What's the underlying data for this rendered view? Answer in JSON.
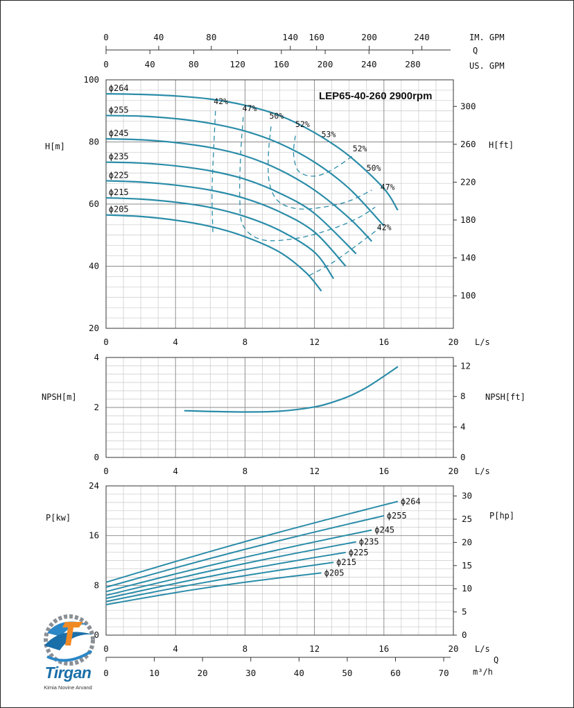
{
  "chart_data": [
    {
      "type": "line",
      "title": "LEP65-40-260 2900rpm",
      "ylabel": "H[m]",
      "ylabel_right": "H[ft]",
      "xlabel": "L/s",
      "xlim": [
        0,
        20
      ],
      "ylim": [
        20,
        100
      ],
      "xticks": [
        "0",
        "4",
        "8",
        "12",
        "16",
        "20"
      ],
      "yticks": [
        "20",
        "40",
        "60",
        "80",
        "100"
      ],
      "yticks_right": [
        "100",
        "140",
        "180",
        "220",
        "260",
        "300"
      ],
      "top_axes": [
        {
          "label": "IM. GPM",
          "ticks": [
            "0",
            "40",
            "80",
            "140",
            "160",
            "200",
            "240"
          ]
        },
        {
          "label": "Q",
          "ticks": []
        },
        {
          "label": "US. GPM",
          "ticks": [
            "0",
            "40",
            "80",
            "120",
            "160",
            "200",
            "240",
            "280"
          ]
        }
      ],
      "grid": true,
      "series": [
        {
          "name": "ϕ264",
          "x": [
            0,
            2,
            4,
            6,
            8,
            10,
            12,
            14,
            16,
            16.8
          ],
          "values": [
            95.5,
            95.3,
            94.8,
            93.8,
            91.8,
            88.5,
            83.0,
            75.5,
            65.0,
            58.0
          ]
        },
        {
          "name": "ϕ255",
          "x": [
            0,
            2,
            4,
            6,
            8,
            10,
            12,
            14,
            16
          ],
          "values": [
            88.5,
            88.3,
            87.5,
            86.0,
            83.5,
            79.5,
            73.5,
            65.0,
            53.0
          ]
        },
        {
          "name": "ϕ245",
          "x": [
            0,
            2,
            4,
            6,
            8,
            10,
            12,
            14,
            15.3
          ],
          "values": [
            81.0,
            80.7,
            79.8,
            78.2,
            75.5,
            71.0,
            64.5,
            55.5,
            48.0
          ]
        },
        {
          "name": "ϕ235",
          "x": [
            0,
            2,
            4,
            6,
            8,
            10,
            12,
            14.4
          ],
          "values": [
            73.5,
            73.2,
            72.3,
            70.7,
            68.0,
            63.5,
            57.0,
            44.0
          ]
        },
        {
          "name": "ϕ225",
          "x": [
            0,
            2,
            4,
            6,
            8,
            10,
            12,
            13.8
          ],
          "values": [
            67.5,
            67.1,
            66.1,
            64.5,
            61.8,
            57.5,
            51.0,
            40.0
          ]
        },
        {
          "name": "ϕ215",
          "x": [
            0,
            2,
            4,
            6,
            8,
            10,
            12,
            13.1
          ],
          "values": [
            62.0,
            61.6,
            60.6,
            58.9,
            56.0,
            51.5,
            44.5,
            36.0
          ]
        },
        {
          "name": "ϕ205",
          "x": [
            0,
            2,
            4,
            6,
            8,
            10,
            11.5,
            12.4
          ],
          "values": [
            56.5,
            56.0,
            54.8,
            52.8,
            49.5,
            44.5,
            38.0,
            32.0
          ]
        }
      ],
      "efficiency_contours": [
        {
          "label": "42%",
          "x": [
            6.3,
            6.2,
            6.1,
            6.15
          ],
          "values": [
            90.0,
            78.0,
            64.0,
            51.0
          ]
        },
        {
          "label": "47%",
          "x": [
            7.9,
            7.75,
            7.7,
            7.9,
            9.0,
            11.0,
            13.0,
            14.5,
            15.5
          ],
          "values": [
            88.0,
            76.0,
            62.0,
            53.0,
            48.5,
            49.0,
            52.0,
            55.5,
            59.0
          ]
        },
        {
          "label": "50%",
          "x": [
            9.5,
            9.35,
            9.4,
            9.9,
            11.0,
            12.5,
            14.0,
            15.3
          ],
          "values": [
            85.0,
            76.0,
            67.0,
            61.0,
            58.5,
            59.0,
            61.0,
            64.5
          ]
        },
        {
          "label": "52%",
          "x": [
            10.9,
            10.8,
            11.1,
            12.0,
            13.0,
            14.2
          ],
          "values": [
            82.0,
            76.0,
            70.5,
            69.0,
            71.0,
            75.5
          ]
        },
        {
          "label": "42%",
          "x": [
            11.7,
            13.0,
            14.5,
            15.8
          ],
          "values": [
            37.0,
            41.0,
            47.0,
            52.5
          ]
        }
      ],
      "efficiency_labels": [
        "42%",
        "47%",
        "50%",
        "52%",
        "53%",
        "52%",
        "50%",
        "47%",
        "42%"
      ]
    },
    {
      "type": "line",
      "ylabel": "NPSH[m]",
      "ylabel_right": "NPSH[ft]",
      "xlabel": "L/s",
      "xlim": [
        0,
        20
      ],
      "ylim": [
        0,
        4
      ],
      "xticks": [
        "0",
        "4",
        "8",
        "12",
        "16",
        "20"
      ],
      "yticks": [
        "0",
        "2",
        "4"
      ],
      "yticks_right": [
        "0",
        "4",
        "8",
        "12"
      ],
      "grid": true,
      "series": [
        {
          "x": [
            4.5,
            6,
            8,
            10,
            12,
            13,
            14,
            15,
            16,
            16.8
          ],
          "values": [
            1.87,
            1.84,
            1.82,
            1.85,
            2.02,
            2.2,
            2.45,
            2.8,
            3.25,
            3.63
          ]
        }
      ]
    },
    {
      "type": "line",
      "ylabel": "P[kw]",
      "ylabel_right": "P[hp]",
      "xlabel": "L/s",
      "xlabel_bottom": "m³/h",
      "xlabel_q": "Q",
      "xlim": [
        0,
        20
      ],
      "ylim": [
        0,
        24
      ],
      "xticks": [
        "0",
        "4",
        "8",
        "12",
        "16",
        "20"
      ],
      "xticks_bottom": [
        "0",
        "10",
        "20",
        "30",
        "40",
        "50",
        "60",
        "70"
      ],
      "yticks": [
        "0",
        "8",
        "16",
        "24"
      ],
      "yticks_right": [
        "0",
        "5",
        "10",
        "15",
        "20",
        "25",
        "30"
      ],
      "grid": true,
      "series": [
        {
          "name": "ϕ264",
          "x": [
            0,
            16.8
          ],
          "values": [
            8.5,
            21.5
          ]
        },
        {
          "name": "ϕ255",
          "x": [
            0,
            16.0
          ],
          "values": [
            7.7,
            19.2
          ]
        },
        {
          "name": "ϕ245",
          "x": [
            0,
            15.3
          ],
          "values": [
            7.0,
            16.9
          ]
        },
        {
          "name": "ϕ235",
          "x": [
            0,
            14.4
          ],
          "values": [
            6.4,
            15.0
          ]
        },
        {
          "name": "ϕ225",
          "x": [
            0,
            13.8
          ],
          "values": [
            5.9,
            13.3
          ]
        },
        {
          "name": "ϕ215",
          "x": [
            0,
            13.1
          ],
          "values": [
            5.4,
            11.7
          ]
        },
        {
          "name": "ϕ205",
          "x": [
            0,
            12.4
          ],
          "values": [
            4.9,
            10.0
          ]
        }
      ]
    }
  ],
  "logo": {
    "name": "Tirgan",
    "subtitle": "Kimia Novine Arvand"
  },
  "colors": {
    "curve": "#2a8ca8",
    "grid_major": "#888888",
    "grid_minor": "#c8c8c8",
    "axis": "#333333"
  }
}
